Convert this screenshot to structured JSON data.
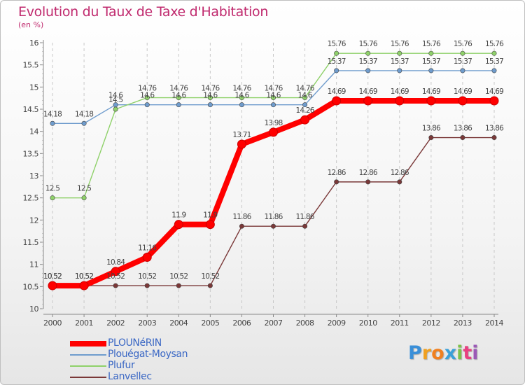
{
  "header": {
    "title": "Evolution du Taux de Taxe d'Habitation",
    "unit": "(en %)"
  },
  "chart_data": {
    "type": "line",
    "title": "Evolution du Taux de Taxe d'Habitation",
    "ylabel": "(en %)",
    "xlabel": "",
    "categories": [
      "2000",
      "2001",
      "2002",
      "2003",
      "2004",
      "2005",
      "2006",
      "2007",
      "2008",
      "2009",
      "2010",
      "2011",
      "2012",
      "2013",
      "2014"
    ],
    "ylim": [
      10,
      16
    ],
    "yticks": [
      "10",
      "10.5",
      "11",
      "11.5",
      "12",
      "12.5",
      "13",
      "13.5",
      "14",
      "14.5",
      "15",
      "15.5",
      "16"
    ],
    "legend_position": "bottom-left",
    "series": [
      {
        "name": "PLOUNéRIN",
        "color": "#ff0000",
        "values": [
          10.52,
          10.52,
          10.84,
          11.16,
          11.9,
          11.9,
          13.71,
          13.98,
          14.26,
          14.69,
          14.69,
          14.69,
          14.69,
          14.69,
          14.69
        ],
        "labels": [
          "10.52",
          "10.52",
          "10.84",
          "11.16",
          "11.9",
          "11.9",
          "13.71",
          "13.98",
          "14.26",
          "14.69",
          "14.69",
          "14.69",
          "14.69",
          "14.69",
          "14.69"
        ]
      },
      {
        "name": "Plouégat-Moysan",
        "color": "#6f9ccd",
        "values": [
          14.18,
          14.18,
          14.6,
          14.6,
          14.6,
          14.6,
          14.6,
          14.6,
          14.6,
          15.37,
          15.37,
          15.37,
          15.37,
          15.37,
          15.37
        ],
        "labels": [
          "14.18",
          "14.18",
          "14.6",
          "14.6",
          "14.6",
          "14.6",
          "14.6",
          "14.6",
          "14.6",
          "15.37",
          "15.37",
          "15.37",
          "15.37",
          "15.37",
          "15.37"
        ]
      },
      {
        "name": "Plufur",
        "color": "#8fd16a",
        "values": [
          12.5,
          12.5,
          14.5,
          14.76,
          14.76,
          14.76,
          14.76,
          14.76,
          14.76,
          15.76,
          15.76,
          15.76,
          15.76,
          15.76,
          15.76
        ],
        "labels": [
          "12.5",
          "12.5",
          "14.5",
          "14.76",
          "14.76",
          "14.76",
          "14.76",
          "14.76",
          "14.76",
          "15.76",
          "15.76",
          "15.76",
          "15.76",
          "15.76",
          "15.76"
        ]
      },
      {
        "name": "Lanvellec",
        "color": "#7a3838",
        "values": [
          10.52,
          10.52,
          10.52,
          10.52,
          10.52,
          10.52,
          11.86,
          11.86,
          11.86,
          12.86,
          12.86,
          12.86,
          13.86,
          13.86,
          13.86
        ],
        "labels": [
          "10.52",
          "10.52",
          "10.52",
          "10.52",
          "10.52",
          "10.52",
          "11.86",
          "11.86",
          "11.86",
          "12.86",
          "12.86",
          "12.86",
          "13.86",
          "13.86",
          "13.86"
        ]
      }
    ]
  },
  "legend": {
    "items": [
      {
        "label": "PLOUNéRIN",
        "color": "#ff0000"
      },
      {
        "label": "Plouégat-Moysan",
        "color": "#6f9ccd"
      },
      {
        "label": "Plufur",
        "color": "#8fd16a"
      },
      {
        "label": "Lanvellec",
        "color": "#7a3838"
      }
    ]
  },
  "logo": {
    "text": "Proxiti",
    "letters": [
      "P",
      "r",
      "o",
      "x",
      "i",
      "t",
      "i"
    ],
    "colors": [
      "#3a8fd8",
      "#f0a020",
      "#f08020",
      "#3aa0d8",
      "#7cc24a",
      "#e84080",
      "#9b59b6"
    ]
  }
}
